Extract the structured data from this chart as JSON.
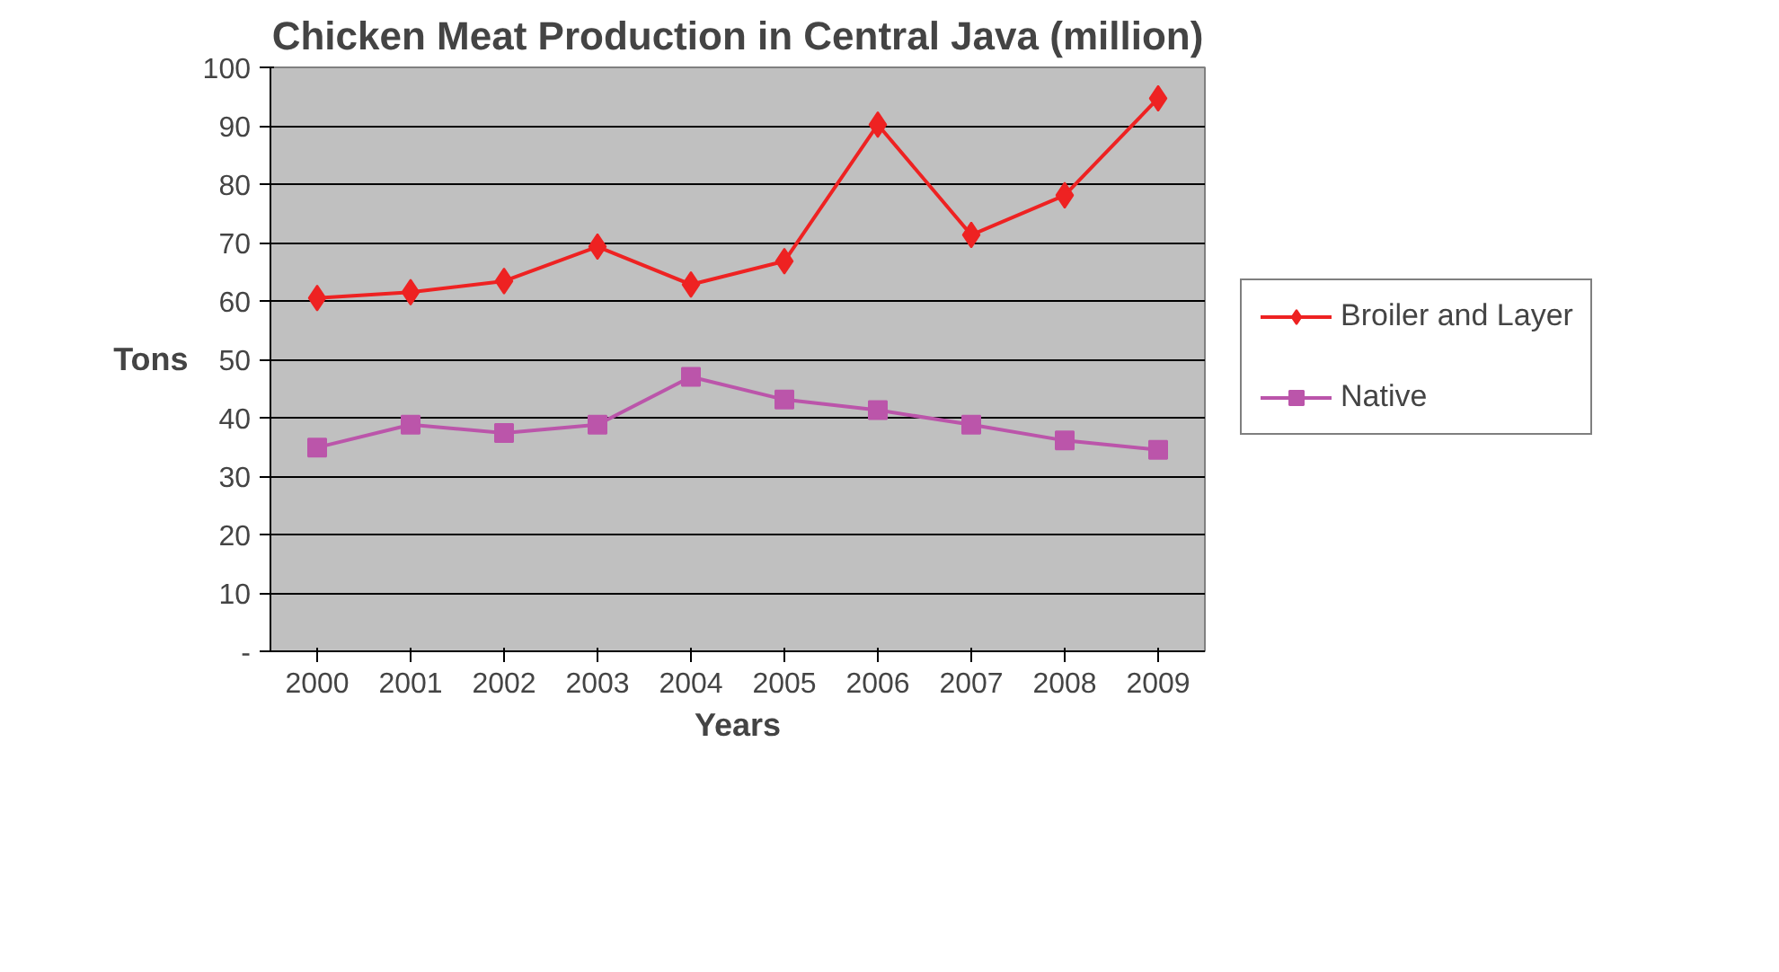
{
  "chart_data": {
    "type": "line",
    "title": "Chicken Meat Production in Central Java (million)",
    "xlabel": "Years",
    "ylabel": "Tons",
    "categories": [
      "2000",
      "2001",
      "2002",
      "2003",
      "2004",
      "2005",
      "2006",
      "2007",
      "2008",
      "2009"
    ],
    "series": [
      {
        "name": "Broiler and Layer",
        "color": "#ee2222",
        "marker": "diamond",
        "values": [
          60.5,
          61.5,
          63.4,
          69.3,
          62.8,
          66.8,
          90.2,
          71.3,
          78.1,
          94.7
        ]
      },
      {
        "name": "Native",
        "color": "#bb55aa",
        "marker": "square",
        "values": [
          34.9,
          38.8,
          37.4,
          38.8,
          47.0,
          43.1,
          41.3,
          38.8,
          36.1,
          34.5
        ]
      }
    ],
    "ylim": [
      0,
      100
    ],
    "yticks": [
      {
        "value": 0,
        "label": "-"
      },
      10,
      20,
      30,
      40,
      50,
      60,
      70,
      80,
      90,
      100
    ],
    "grid": "y",
    "legend": "right",
    "line_style": "solid"
  }
}
